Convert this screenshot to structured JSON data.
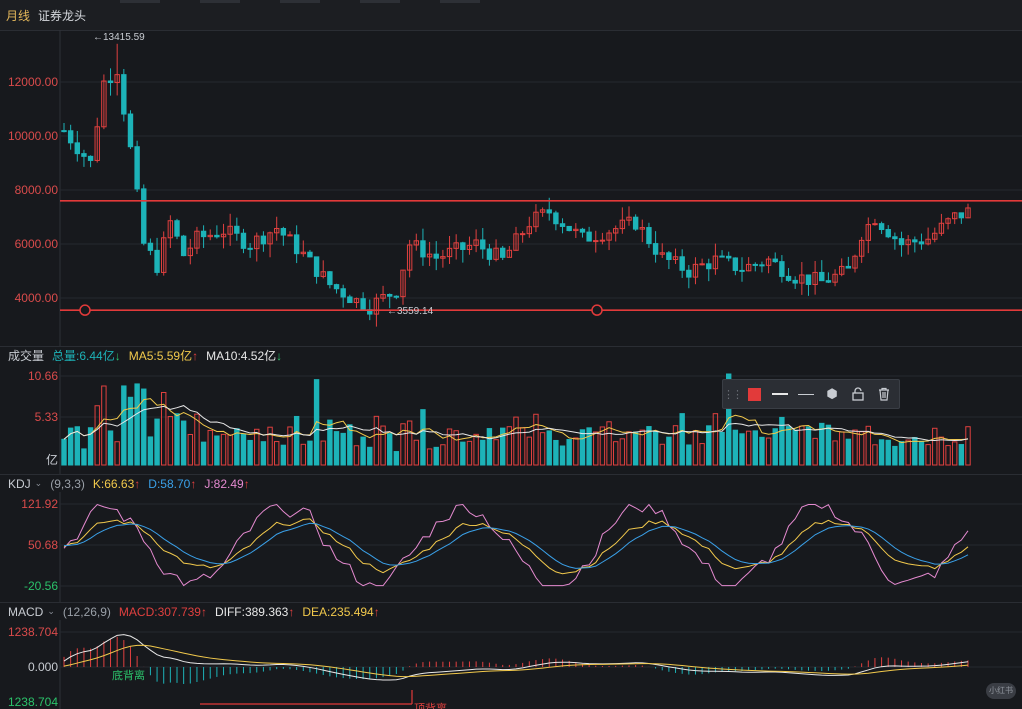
{
  "header": {
    "period": "月线",
    "stock_name": "证券龙头"
  },
  "main_chart": {
    "y_ticks": [
      "12000.00",
      "10000.00",
      "8000.00",
      "6000.00",
      "4000.00"
    ],
    "high_label": "←13415.59",
    "low_label": "←3559.14",
    "resistance_value": 7600,
    "support_value": 3550
  },
  "volume": {
    "title": "成交量",
    "total_label": "总量:6.44亿",
    "ma5_label": "MA5:5.59亿",
    "ma10_label": "MA10:4.52亿",
    "y_ticks": [
      "10.66",
      "5.33",
      "亿"
    ]
  },
  "kdj": {
    "name": "KDJ",
    "params": "(9,3,3)",
    "k_label": "K:66.63",
    "d_label": "D:58.70",
    "j_label": "J:82.49",
    "y_ticks": [
      "121.92",
      "50.68",
      "-20.56"
    ]
  },
  "macd": {
    "name": "MACD",
    "params": "(12,26,9)",
    "macd_label": "MACD:307.739",
    "diff_label": "DIFF:389.363",
    "dea_label": "DEA:235.494",
    "y_ticks": [
      "1238.704",
      "0.000",
      "1238.704"
    ],
    "annotations": [
      "顶背离",
      "底背离"
    ]
  },
  "toolbar": {
    "icons": [
      "drag-handle-icon",
      "color-swatch-icon",
      "line-solid-icon",
      "line-thin-icon",
      "settings-hex-icon",
      "unlock-icon",
      "trash-icon"
    ]
  },
  "colors": {
    "up": "#e0403f",
    "down": "#1db3b8",
    "k": "#f2c94c",
    "d": "#3aa0e8",
    "j": "#e58ad0",
    "line": "#e23a3a",
    "white": "#e8e8e8"
  },
  "watermark": "小红书"
}
